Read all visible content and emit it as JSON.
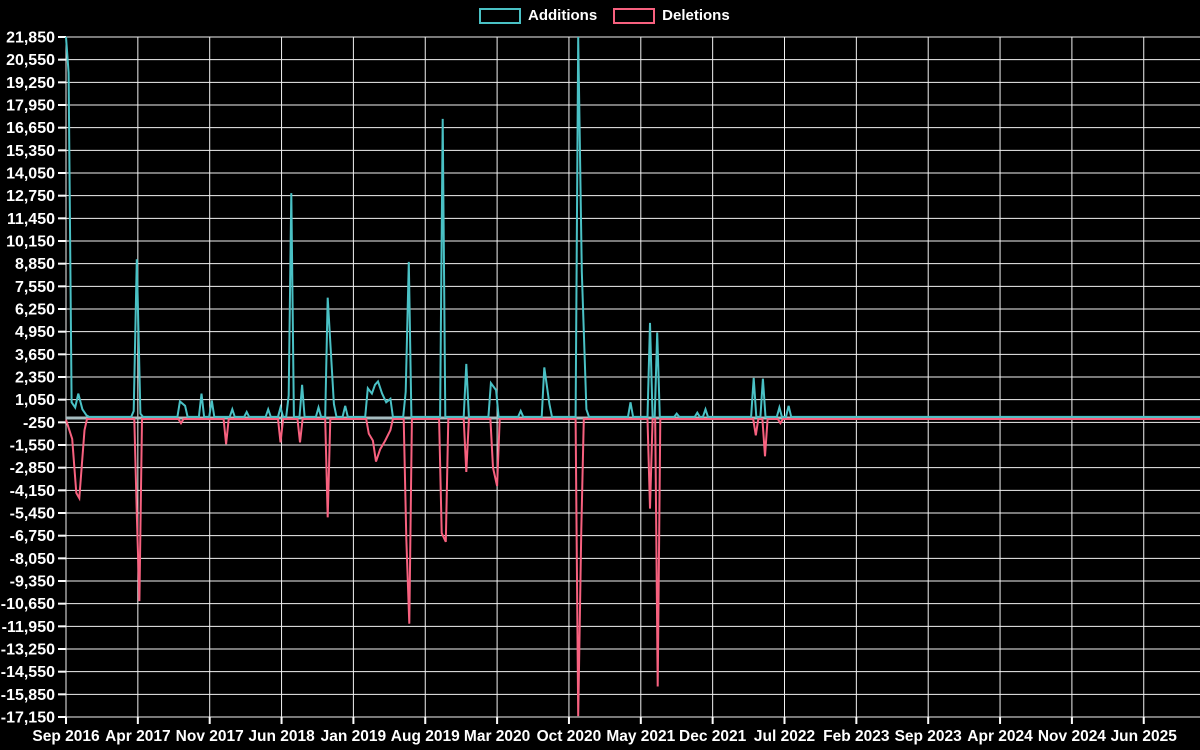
{
  "legend": {
    "items": [
      {
        "label": "Additions",
        "color": "#4ac1c5"
      },
      {
        "label": "Deletions",
        "color": "#f7617f"
      }
    ]
  },
  "chart_data": {
    "type": "line",
    "title": "",
    "description": "Weekly code additions and deletions over time; spiky line chart on black background with white grid",
    "background": "#000000",
    "grid": true,
    "grid_color": "#f2f2f2",
    "zero_line_color": "#a6bcc0",
    "legend_position": "top-center",
    "x_axis": {
      "unit": "months since Sep 2016",
      "months_per_tick": 7,
      "tick_labels": [
        "Sep 2016",
        "Apr 2017",
        "Nov 2017",
        "Jun 2018",
        "Jan 2019",
        "Aug 2019",
        "Mar 2020",
        "Oct 2020",
        "May 2021",
        "Dec 2021",
        "Jul 2022",
        "Feb 2023",
        "Sep 2023",
        "Apr 2024",
        "Nov 2024",
        "Jun 2025"
      ],
      "range_months": [
        0,
        110.5
      ]
    },
    "y_axis": {
      "min": -17150,
      "max": 21850,
      "tick_step": 1300,
      "tick_labels": [
        "21,850",
        "20,550",
        "19,250",
        "17,950",
        "16,650",
        "15,350",
        "14,050",
        "12,750",
        "11,450",
        "10,150",
        "8,850",
        "7,550",
        "6,250",
        "4,950",
        "3,650",
        "2,350",
        "1,050",
        "-250",
        "-1,550",
        "-2,850",
        "-4,150",
        "-5,450",
        "-6,750",
        "-8,050",
        "-9,350",
        "-10,650",
        "-11,950",
        "-13,250",
        "-14,550",
        "-15,850",
        "-17,150"
      ]
    },
    "series": [
      {
        "name": "Additions",
        "color": "#4ac1c5",
        "baseline": 60,
        "points": [
          [
            0,
            21850
          ],
          [
            0.25,
            19800
          ],
          [
            0.55,
            900
          ],
          [
            0.9,
            600
          ],
          [
            1.2,
            1400
          ],
          [
            1.6,
            500
          ],
          [
            2.0,
            150
          ],
          [
            6.6,
            400
          ],
          [
            6.9,
            9100
          ],
          [
            7.25,
            250
          ],
          [
            11.1,
            950
          ],
          [
            11.6,
            700
          ],
          [
            13.2,
            1400
          ],
          [
            14.2,
            1000
          ],
          [
            16.2,
            500
          ],
          [
            17.6,
            350
          ],
          [
            19.7,
            500
          ],
          [
            20.9,
            600
          ],
          [
            21.7,
            1300
          ],
          [
            21.95,
            12900
          ],
          [
            23.0,
            1900
          ],
          [
            24.6,
            600
          ],
          [
            25.5,
            6900
          ],
          [
            26.1,
            800
          ],
          [
            27.2,
            700
          ],
          [
            29.4,
            1700
          ],
          [
            29.8,
            1400
          ],
          [
            30.1,
            1900
          ],
          [
            30.4,
            2100
          ],
          [
            30.8,
            1400
          ],
          [
            31.2,
            900
          ],
          [
            31.6,
            1100
          ],
          [
            33.1,
            1500
          ],
          [
            33.4,
            8950
          ],
          [
            36.7,
            17150
          ],
          [
            39.0,
            3100
          ],
          [
            41.4,
            2000
          ],
          [
            41.9,
            1600
          ],
          [
            44.3,
            400
          ],
          [
            46.6,
            2900
          ],
          [
            47.1,
            800
          ],
          [
            49.9,
            21850
          ],
          [
            50.25,
            8400
          ],
          [
            50.7,
            500
          ],
          [
            55.0,
            900
          ],
          [
            56.9,
            5450
          ],
          [
            57.6,
            4900
          ],
          [
            59.5,
            250
          ],
          [
            61.5,
            300
          ],
          [
            62.3,
            500
          ],
          [
            67.0,
            2290
          ],
          [
            67.9,
            2250
          ],
          [
            69.5,
            600
          ],
          [
            70.4,
            700
          ],
          [
            110.5,
            60
          ]
        ]
      },
      {
        "name": "Deletions",
        "color": "#f7617f",
        "baseline": -60,
        "points": [
          [
            0,
            -100
          ],
          [
            0.6,
            -1200
          ],
          [
            1.0,
            -4300
          ],
          [
            1.3,
            -4600
          ],
          [
            1.8,
            -700
          ],
          [
            6.9,
            -5500
          ],
          [
            7.15,
            -10500
          ],
          [
            11.2,
            -300
          ],
          [
            15.6,
            -1500
          ],
          [
            20.9,
            -1400
          ],
          [
            22.8,
            -1400
          ],
          [
            25.5,
            -5700
          ],
          [
            29.5,
            -900
          ],
          [
            29.9,
            -1300
          ],
          [
            30.2,
            -2500
          ],
          [
            30.6,
            -1800
          ],
          [
            31.1,
            -1300
          ],
          [
            31.6,
            -700
          ],
          [
            33.15,
            -6900
          ],
          [
            33.45,
            -11800
          ],
          [
            36.6,
            -6600
          ],
          [
            37.0,
            -7100
          ],
          [
            39.0,
            -3100
          ],
          [
            41.6,
            -2850
          ],
          [
            42.0,
            -3900
          ],
          [
            49.9,
            -17100
          ],
          [
            50.2,
            -6400
          ],
          [
            56.9,
            -5200
          ],
          [
            57.65,
            -15400
          ],
          [
            67.2,
            -1000
          ],
          [
            68.1,
            -2200
          ],
          [
            69.6,
            -300
          ],
          [
            110.5,
            -60
          ]
        ]
      }
    ]
  }
}
